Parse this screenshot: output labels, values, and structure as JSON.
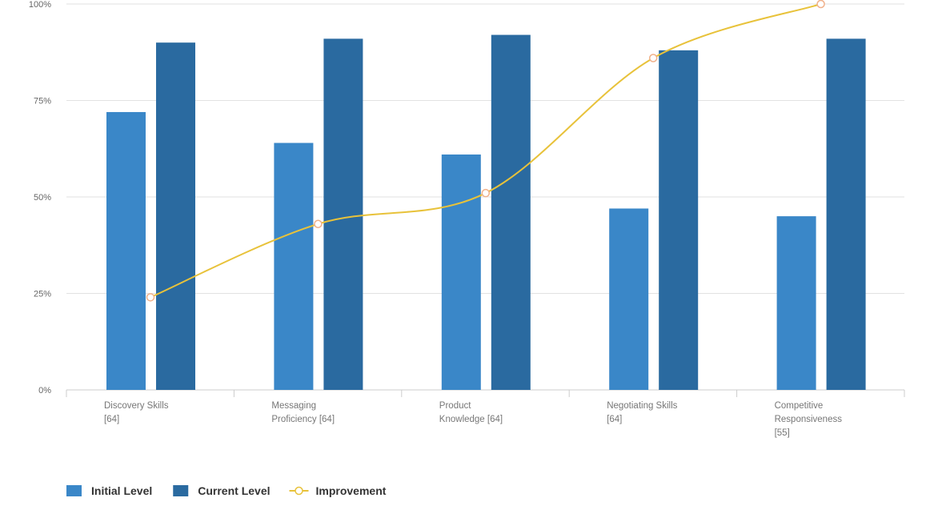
{
  "chart_data": {
    "type": "bar",
    "title": "",
    "xlabel": "",
    "ylabel": "",
    "ylim": [
      0,
      100
    ],
    "yticks": [
      "0%",
      "25%",
      "50%",
      "75%",
      "100%"
    ],
    "categories": [
      [
        "Discovery Skills",
        "[64]"
      ],
      [
        "Messaging",
        "Proficiency [64]"
      ],
      [
        "Product",
        "Knowledge [64]"
      ],
      [
        "Negotiating Skills",
        "[64]"
      ],
      [
        "Competitive",
        "Responsiveness",
        "[55]"
      ]
    ],
    "series": [
      {
        "name": "Initial Level",
        "type": "bar",
        "color": "#3a87c8",
        "values": [
          72,
          64,
          61,
          47,
          45
        ]
      },
      {
        "name": "Current Level",
        "type": "bar",
        "color": "#2a6aa0",
        "values": [
          90,
          91,
          92,
          88,
          91
        ]
      },
      {
        "name": "Improvement",
        "type": "line",
        "color": "#e8c23a",
        "values": [
          24,
          43,
          51,
          86,
          100
        ]
      }
    ],
    "grid": true,
    "legend": "bottom-left"
  }
}
